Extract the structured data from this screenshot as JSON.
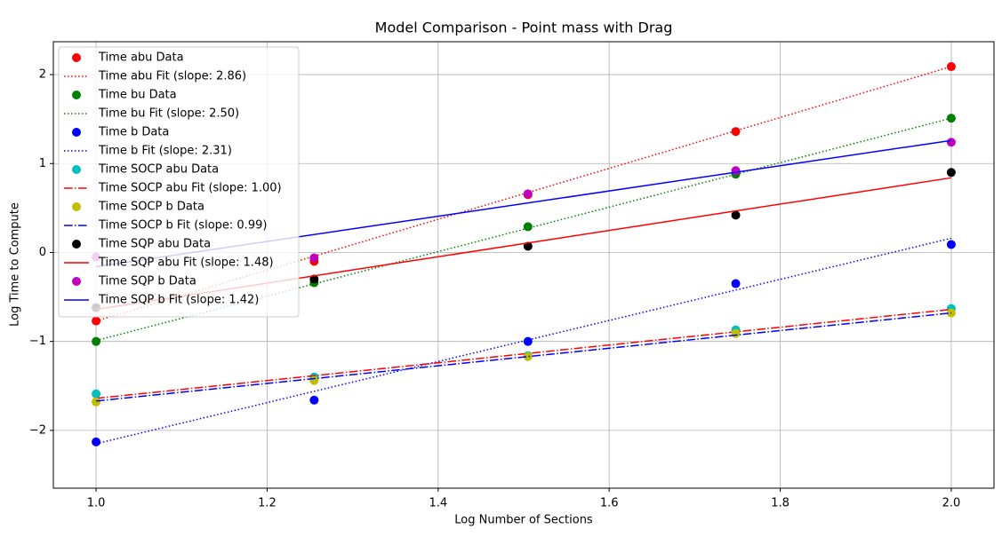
{
  "chart_data": {
    "type": "line",
    "title": "Model Comparison - Point mass with Drag",
    "x_label": "Log Number of Sections",
    "y_label": "Log Time to Compute",
    "xlim": [
      0.95,
      2.05
    ],
    "ylim": [
      -2.65,
      2.37
    ],
    "xticks": [
      {
        "value": 1,
        "label": "1.0"
      },
      1.2,
      1.4,
      1.6,
      1.8,
      {
        "value": 2,
        "label": "2.0"
      }
    ],
    "yticks": [
      {
        "value": -2,
        "label": "−2"
      },
      {
        "value": -1,
        "label": "−1"
      },
      0,
      1,
      2
    ],
    "grid": true,
    "legend": "upper left",
    "series": [
      {
        "name": "Time abu Data",
        "color": "#ff0000",
        "style": "marker",
        "x": [
          1,
          1.255,
          1.505,
          1.748,
          2
        ],
        "values": [
          -0.77,
          -0.1,
          0.65,
          1.36,
          2.09
        ]
      },
      {
        "name": "Time abu Fit (slope: 2.86)",
        "color": "#ff0000",
        "style": "dotted",
        "x": [
          1,
          2
        ],
        "values": [
          -0.77,
          2.09
        ]
      },
      {
        "name": "Time bu Data",
        "color": "#008000",
        "style": "marker",
        "x": [
          1,
          1.255,
          1.505,
          1.748,
          2
        ],
        "values": [
          -1.0,
          -0.34,
          0.29,
          0.88,
          1.51
        ]
      },
      {
        "name": "Time bu Fit (slope: 2.50)",
        "color": "#008000",
        "style": "dotted",
        "x": [
          1,
          2
        ],
        "values": [
          -0.99,
          1.51
        ]
      },
      {
        "name": "Time b Data",
        "color": "#0000ff",
        "style": "marker",
        "x": [
          1,
          1.255,
          1.505,
          1.748,
          2
        ],
        "values": [
          -2.13,
          -1.66,
          -1.0,
          -0.35,
          0.09
        ]
      },
      {
        "name": "Time b Fit (slope: 2.31)",
        "color": "#0000ff",
        "style": "dotted",
        "x": [
          1,
          2
        ],
        "values": [
          -2.15,
          0.16
        ]
      },
      {
        "name": "Time SOCP abu Data",
        "color": "#00bfbf",
        "style": "marker",
        "x": [
          1,
          1.255,
          1.505,
          1.748,
          2
        ],
        "values": [
          -1.59,
          -1.4,
          -1.16,
          -0.87,
          -0.63
        ]
      },
      {
        "name": "Time SOCP abu Fit (slope: 1.00)",
        "color": "#ff0000",
        "style": "dashdot",
        "x": [
          1,
          2
        ],
        "values": [
          -1.64,
          -0.64
        ]
      },
      {
        "name": "Time SOCP b Data",
        "color": "#bfbf00",
        "style": "marker",
        "x": [
          1,
          1.255,
          1.505,
          1.748,
          2
        ],
        "values": [
          -1.68,
          -1.44,
          -1.17,
          -0.91,
          -0.68
        ]
      },
      {
        "name": "Time SOCP b Fit (slope: 0.99)",
        "color": "#0000ff",
        "style": "dashdot",
        "x": [
          1,
          2
        ],
        "values": [
          -1.67,
          -0.68
        ]
      },
      {
        "name": "Time SQP abu Data",
        "color": "#000000",
        "style": "marker",
        "x": [
          1,
          1.255,
          1.505,
          1.748,
          2
        ],
        "values": [
          -0.62,
          -0.3,
          0.07,
          0.42,
          0.9
        ]
      },
      {
        "name": "Time SQP abu Fit (slope: 1.48)",
        "color": "#ff0000",
        "style": "solid",
        "x": [
          1,
          2
        ],
        "values": [
          -0.64,
          0.84
        ]
      },
      {
        "name": "Time SQP b Data",
        "color": "#bf00bf",
        "style": "marker",
        "x": [
          1,
          1.255,
          1.505,
          1.748,
          2
        ],
        "values": [
          -0.05,
          -0.06,
          0.66,
          0.92,
          1.24
        ]
      },
      {
        "name": "Time SQP b Fit (slope: 1.42)",
        "color": "#0000ff",
        "style": "solid",
        "x": [
          1,
          2
        ],
        "values": [
          -0.16,
          1.26
        ]
      }
    ]
  }
}
